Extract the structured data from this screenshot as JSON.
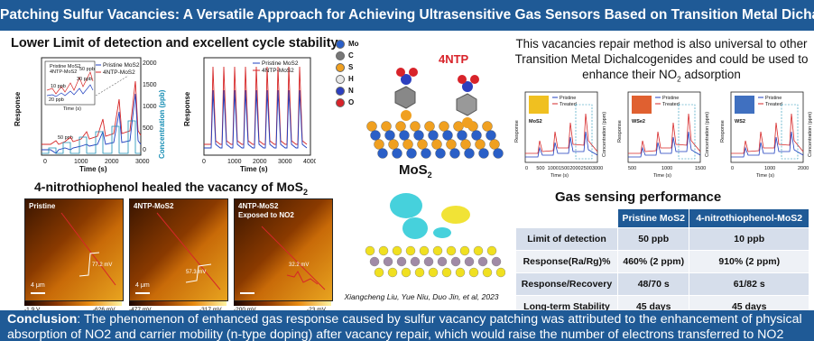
{
  "title": "Patching Sulfur Vacancies: A Versatile Approach for Achieving Ultrasensitive Gas Sensors Based on Transition Metal Dichalcogenides",
  "sections": {
    "lod_title": "Lower Limit of detection and excellent cycle stability",
    "heal_title": "4-nitrothiophenol healed the vacancy of MoS",
    "heal_sub": "2",
    "universal_text": "This vacancies repair method is also universal to other Transition Metal Dichalcogenides and could be used to enhance their NO",
    "universal_sub": "2",
    "universal_tail": " adsorption",
    "perf_title": "Gas sensing performance"
  },
  "chart1": {
    "ylabel": "Response",
    "y2label": "Concentration (ppb)",
    "xlabel": "Time (s)",
    "xticks": [
      "0",
      "1000",
      "2000",
      "3000"
    ],
    "y2ticks": [
      "0",
      "500",
      "1000",
      "1500",
      "2000"
    ],
    "legend": [
      "Pristine MoS2",
      "4NTP-MoS2"
    ],
    "annotations": [
      "50 ppb",
      "30 ppb",
      "10 ppb",
      "20 ppb",
      "50 ppb",
      "Pristine MoS2",
      "4NTP-MoS2"
    ],
    "inset_xticks": [
      "0",
      "400",
      "800"
    ],
    "inset_xlabel": "Time (s)"
  },
  "chart2": {
    "ylabel": "Response",
    "xlabel": "Time (s)",
    "xticks": [
      "0",
      "1000",
      "2000",
      "3000",
      "4000"
    ],
    "legend": [
      "Pristine MoS2",
      "4NTP-MoS2"
    ]
  },
  "structure": {
    "legend": [
      "Mo",
      "C",
      "S",
      "H",
      "N",
      "O"
    ],
    "legend_colors": [
      "#2a5fc7",
      "#777777",
      "#f0a020",
      "#e8e8e8",
      "#2c3fbf",
      "#d8232a"
    ],
    "molecule_label": "4NTP",
    "surface_label": "MoS",
    "surface_sub": "2",
    "citation": "Xiangcheng Liu, Yue Niu, Duo Jin, et al, 2023"
  },
  "afm": [
    {
      "label": "Pristine",
      "value": "77.2 mV",
      "cbar_min": "-1.9 V",
      "cbar_max": "-626 mV"
    },
    {
      "label": "4NTP-MoS2",
      "value": "57.3 mV",
      "cbar_min": "-477 mV",
      "cbar_max": "-317 mV"
    },
    {
      "label": "4NTP-MoS2\nExposed to NO2",
      "value": "32.2 mV",
      "cbar_min": "-200 mV",
      "cbar_max": "-23 mV"
    }
  ],
  "afm_scale": "4 μm",
  "mini_charts": [
    {
      "name": "MoS2",
      "legend": [
        "Pristine",
        "Treated"
      ],
      "xlabel": "Time (s)",
      "ylabel": "Response",
      "xticks": [
        "0",
        "500",
        "1000",
        "1500",
        "2000",
        "2500",
        "3000"
      ]
    },
    {
      "name": "WSe2",
      "legend": [
        "Pristine",
        "Treated"
      ],
      "xlabel": "Time (s)",
      "ylabel": "Response",
      "xticks": [
        "500",
        "1000",
        "1500"
      ]
    },
    {
      "name": "WS2",
      "legend": [
        "Pristine",
        "Treated"
      ],
      "xlabel": "Time (s)",
      "ylabel": "Response",
      "xticks": [
        "0",
        "1000",
        "2000"
      ]
    }
  ],
  "mini_y2label": "Concentration (ppm)",
  "table": {
    "headers": [
      "",
      "Pristine MoS2",
      "4-nitrothiophenol-MoS2"
    ],
    "rows": [
      [
        "Limit of detection",
        "50 ppb",
        "10 ppb"
      ],
      [
        "Response(Ra/Rg)%",
        "460% (2 ppm)",
        "910% (2 ppm)"
      ],
      [
        "Response/Recovery",
        "48/70 s",
        "61/82 s"
      ],
      [
        "Long-term Stability",
        "45 days",
        "45 days"
      ]
    ]
  },
  "conclusion": {
    "label": "Conclusion",
    "text": ": The phenomenon of enhanced gas response caused by sulfur vacancy patching was attributed to the enhancement of physical",
    "line2": "absorption of NO2 and carrier mobility (n-type doping) after vacancy repair, which would raise the number of electrons transferred to NO2"
  }
}
